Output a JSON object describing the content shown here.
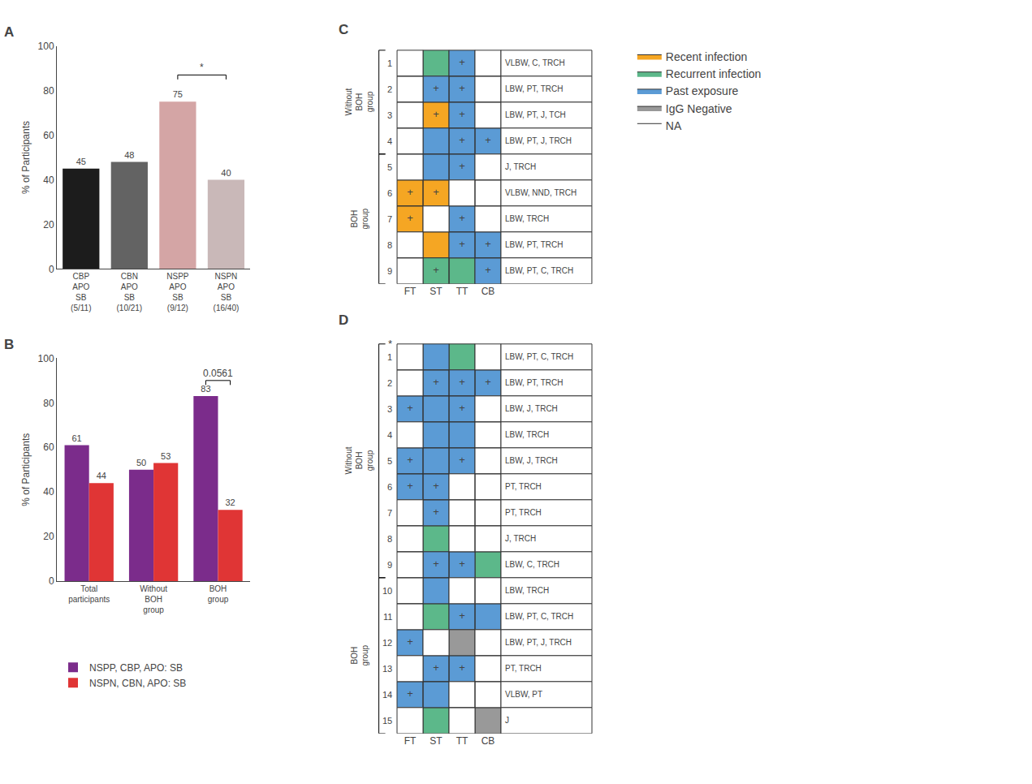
{
  "chart_data": [
    {
      "type": "bar",
      "title": "A",
      "categories": [
        "CBP\nAPO\nSB\n(5/11)",
        "CBN\nAPO\nSB\n(10/21)",
        "NSPP\nAPO\nSB\n(9/12)",
        "NSPN\nAPO\nSB\n(16/40)"
      ],
      "values": [
        45,
        48,
        75,
        40
      ],
      "colors": [
        "#1c1c1c",
        "#636363",
        "#d4a5a5",
        "#c9b8b8"
      ],
      "ylabel": "% of Participants",
      "ylim": [
        0,
        100
      ],
      "yticks": [
        0,
        20,
        40,
        60,
        80,
        100
      ],
      "grid": false,
      "data_labels": true,
      "annotations": [
        {
          "text": "*",
          "between": [
            {
              "category": 2
            },
            {
              "category": 3
            }
          ],
          "y": 85
        }
      ]
    },
    {
      "type": "bar",
      "title": "B",
      "categories": [
        "Total\nparticipants",
        "Without\nBOH\ngroup",
        "BOH\ngroup"
      ],
      "series": [
        {
          "name": "NSPP, CBP, APO: SB",
          "color": "#7b2c8b",
          "values": [
            61,
            50,
            83
          ]
        },
        {
          "name": "NSPN, CBN, APO: SB",
          "color": "#e03535",
          "values": [
            44,
            53,
            32
          ]
        }
      ],
      "ylabel": "% of Participants",
      "ylim": [
        0,
        100
      ],
      "yticks": [
        0,
        20,
        40,
        60,
        80,
        100
      ],
      "grid": false,
      "data_labels": true,
      "legend": "bottom",
      "annotations": [
        {
          "text": "0.0561",
          "between": [
            {
              "category": 2,
              "series": 0
            },
            {
              "category": 2,
              "series": 1
            }
          ],
          "y": 88
        }
      ]
    },
    {
      "type": "grid",
      "title": "C",
      "rows": [
        "1",
        "2",
        "3",
        "4",
        "5",
        "6",
        "7",
        "8",
        "9"
      ],
      "columns": [
        "FT",
        "ST",
        "TT",
        "CB"
      ],
      "cells": [
        [
          "NA",
          "Recurrent infection",
          "Past exposure",
          "NA"
        ],
        [
          "NA",
          "Past exposure",
          "Past exposure",
          "NA"
        ],
        [
          "NA",
          "Recent infection",
          "Past exposure",
          "NA"
        ],
        [
          "NA",
          "Past exposure",
          "Past exposure",
          "Past exposure"
        ],
        [
          "NA",
          "Past exposure",
          "Past exposure",
          "NA"
        ],
        [
          "Recent infection",
          "Recent infection",
          "NA",
          "NA"
        ],
        [
          "Recent infection",
          "NA",
          "Past exposure",
          "NA"
        ],
        [
          "NA",
          "Recent infection",
          "Past exposure",
          "Past exposure"
        ],
        [
          "NA",
          "Recurrent infection",
          "Recurrent infection",
          "Past exposure"
        ]
      ],
      "cell_text": [
        [
          null,
          null,
          "+",
          null
        ],
        [
          null,
          "+",
          "+",
          null
        ],
        [
          null,
          "+",
          "+",
          null
        ],
        [
          null,
          null,
          "+",
          "+"
        ],
        [
          null,
          null,
          "+",
          null
        ],
        [
          "+",
          "+",
          null,
          null
        ],
        [
          "+",
          null,
          "+",
          null
        ],
        [
          null,
          null,
          "+",
          "+"
        ],
        [
          null,
          "+",
          null,
          "+"
        ]
      ],
      "row_annotations": [
        "VLBW, C, TRCH",
        "LBW, PT, TRCH",
        "LBW, PT, J, TCH",
        "LBW, PT, J, TRCH",
        "J, TRCH",
        "VLBW, NND, TRCH",
        "LBW, TRCH",
        "LBW, PT, TRCH",
        "LBW, PT, C, TRCH"
      ],
      "row_groups": [
        {
          "label": "Without\nBOH\ngroup",
          "rows": [
            "1",
            "2",
            "3",
            "4"
          ]
        },
        {
          "label": "BOH\ngroup",
          "rows": [
            "5",
            "6",
            "7",
            "8",
            "9"
          ]
        }
      ],
      "series": [
        {
          "name": "Recent infection",
          "color": "#f5a623"
        },
        {
          "name": "Recurrent infection",
          "color": "#5cb88a"
        },
        {
          "name": "Past exposure",
          "color": "#5b9bd5"
        },
        {
          "name": "IgG Negative",
          "color": "#999999"
        },
        {
          "name": "NA",
          "color": "#ffffff"
        }
      ],
      "legend": "right"
    },
    {
      "type": "grid",
      "title": "D",
      "rows": [
        "1",
        "2",
        "3",
        "4",
        "5",
        "6",
        "7",
        "8",
        "9",
        "10",
        "11",
        "12",
        "13",
        "14",
        "15"
      ],
      "columns": [
        "FT",
        "ST",
        "TT",
        "CB"
      ],
      "cells": [
        [
          "NA",
          "Past exposure",
          "Recurrent infection",
          "NA"
        ],
        [
          "NA",
          "Past exposure",
          "Past exposure",
          "Past exposure"
        ],
        [
          "Past exposure",
          "Past exposure",
          "Past exposure",
          "NA"
        ],
        [
          "NA",
          "Past exposure",
          "Past exposure",
          "NA"
        ],
        [
          "Past exposure",
          "Past exposure",
          "Past exposure",
          "NA"
        ],
        [
          "Past exposure",
          "Past exposure",
          "NA",
          "NA"
        ],
        [
          "NA",
          "Past exposure",
          "NA",
          "NA"
        ],
        [
          "NA",
          "Recurrent infection",
          "NA",
          "NA"
        ],
        [
          "NA",
          "Past exposure",
          "Past exposure",
          "Recurrent infection"
        ],
        [
          "NA",
          "Past exposure",
          "NA",
          "NA"
        ],
        [
          "NA",
          "Recurrent infection",
          "Past exposure",
          "Past exposure"
        ],
        [
          "Past exposure",
          "NA",
          "IgG Negative",
          "NA"
        ],
        [
          "NA",
          "Past exposure",
          "Past exposure",
          "NA"
        ],
        [
          "Past exposure",
          "Past exposure",
          "NA",
          "NA"
        ],
        [
          "NA",
          "Recurrent infection",
          "NA",
          "IgG Negative"
        ]
      ],
      "cell_text": [
        [
          null,
          null,
          null,
          null
        ],
        [
          null,
          "+",
          "+",
          "+"
        ],
        [
          "+",
          null,
          "+",
          null
        ],
        [
          null,
          null,
          null,
          null
        ],
        [
          "+",
          null,
          "+",
          null
        ],
        [
          "+",
          "+",
          null,
          null
        ],
        [
          null,
          "+",
          null,
          null
        ],
        [
          null,
          null,
          null,
          null
        ],
        [
          null,
          "+",
          "+",
          null
        ],
        [
          null,
          null,
          null,
          null
        ],
        [
          null,
          null,
          "+",
          null
        ],
        [
          "+",
          null,
          null,
          null
        ],
        [
          null,
          "+",
          "+",
          null
        ],
        [
          "+",
          null,
          null,
          null
        ],
        [
          null,
          null,
          null,
          null
        ]
      ],
      "row_marks": [
        "*",
        null,
        null,
        null,
        null,
        null,
        null,
        null,
        null,
        null,
        null,
        null,
        null,
        null,
        null
      ],
      "row_annotations": [
        "LBW, PT, C, TRCH",
        "LBW, PT, TRCH",
        "LBW, J, TRCH",
        "LBW, TRCH",
        "LBW, J, TRCH",
        "PT, TRCH",
        "PT, TRCH",
        "J, TRCH",
        "LBW, C, TRCH",
        "LBW, TRCH",
        "LBW, PT, C, TRCH",
        "LBW, PT, J, TRCH",
        "PT, TRCH",
        "VLBW, PT",
        "J"
      ],
      "row_groups": [
        {
          "label": "Without\nBOH\ngroup",
          "rows": [
            "1",
            "2",
            "3",
            "4",
            "5",
            "6",
            "7",
            "8",
            "9"
          ]
        },
        {
          "label": "BOH\ngroup",
          "rows": [
            "10",
            "11",
            "12",
            "13",
            "14",
            "15"
          ]
        }
      ]
    }
  ]
}
